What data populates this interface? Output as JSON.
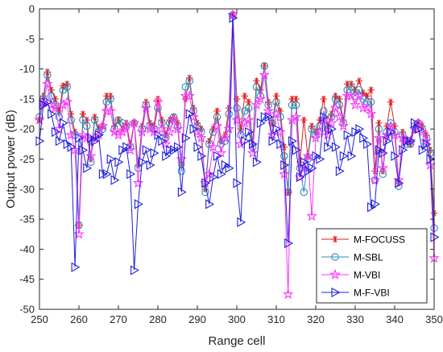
{
  "chart_data": {
    "type": "line",
    "title": "",
    "xlabel": "Range cell",
    "ylabel": "Output power (dB)",
    "xlim": [
      250,
      350
    ],
    "ylim": [
      -50,
      0
    ],
    "xticks": [
      250,
      260,
      270,
      280,
      290,
      300,
      310,
      320,
      330,
      340,
      350
    ],
    "yticks": [
      0,
      -5,
      -10,
      -15,
      -20,
      -25,
      -30,
      -35,
      -40,
      -45,
      -50
    ],
    "grid": false,
    "legend_position": "bottom-right",
    "x": [
      250,
      251,
      252,
      253,
      254,
      255,
      256,
      257,
      258,
      259,
      260,
      261,
      262,
      263,
      264,
      265,
      266,
      267,
      268,
      269,
      270,
      271,
      272,
      273,
      274,
      275,
      276,
      277,
      278,
      279,
      280,
      281,
      282,
      283,
      284,
      285,
      286,
      287,
      288,
      289,
      290,
      291,
      292,
      293,
      294,
      295,
      296,
      297,
      298,
      299,
      300,
      301,
      302,
      303,
      304,
      305,
      306,
      307,
      308,
      309,
      310,
      311,
      312,
      313,
      314,
      315,
      316,
      317,
      318,
      319,
      320,
      321,
      322,
      323,
      324,
      325,
      326,
      327,
      328,
      329,
      330,
      331,
      332,
      333,
      334,
      335,
      336,
      337,
      338,
      339,
      340,
      341,
      342,
      343,
      344,
      345,
      346,
      347,
      348,
      349,
      350
    ],
    "series": [
      {
        "name": "M-FOCUSS",
        "color": "#e41a1c",
        "marker": "asterisk",
        "values": [
          -18.5,
          -14.5,
          -10.5,
          -13.5,
          -15.0,
          -17.0,
          -12.8,
          -12.5,
          -17.5,
          -20.5,
          -36.0,
          -17.5,
          -18.5,
          -25.0,
          -18.0,
          -20.0,
          -19.5,
          -14.5,
          -14.5,
          -19.5,
          -18.5,
          -20.0,
          -19.0,
          -22.5,
          -19.0,
          -26.0,
          -19.5,
          -15.5,
          -19.0,
          -19.5,
          -15.0,
          -18.5,
          -21.0,
          -18.5,
          -18.0,
          -19.0,
          -26.0,
          -15.0,
          -11.5,
          -16.5,
          -19.0,
          -20.0,
          -30.0,
          -22.0,
          -20.0,
          -17.0,
          -22.0,
          -21.0,
          -16.5,
          -1.0,
          -15.0,
          -20.0,
          -14.5,
          -15.5,
          -22.5,
          -12.0,
          -13.5,
          -9.5,
          -15.5,
          -19.0,
          -14.5,
          -17.0,
          -23.0,
          -30.5,
          -15.0,
          -15.0,
          -25.5,
          -18.5,
          -24.5,
          -19.5,
          -20.5,
          -18.5,
          -15.0,
          -19.5,
          -17.5,
          -14.5,
          -15.0,
          -18.5,
          -12.5,
          -12.5,
          -13.5,
          -12.0,
          -14.0,
          -14.5,
          -13.5,
          -27.0,
          -19.0,
          -27.0,
          -19.5,
          -15.5,
          -19.5,
          -29.0,
          -20.5,
          -22.0,
          -22.5,
          -20.0,
          -19.0,
          -19.5,
          -21.0,
          -23.5,
          -34.0
        ]
      },
      {
        "name": "M-SBL",
        "color": "#2b8cbe",
        "marker": "circle",
        "values": [
          -18.0,
          -15.0,
          -11.0,
          -14.5,
          -16.0,
          -18.0,
          -13.5,
          -13.0,
          -18.5,
          -21.0,
          -36.0,
          -18.5,
          -19.5,
          -25.5,
          -18.5,
          -20.5,
          -20.0,
          -15.5,
          -15.0,
          -20.0,
          -18.5,
          -19.0,
          -19.5,
          -23.0,
          -19.0,
          -26.5,
          -20.0,
          -16.0,
          -19.5,
          -20.0,
          -16.5,
          -19.0,
          -21.5,
          -19.0,
          -18.0,
          -19.5,
          -27.0,
          -13.0,
          -12.0,
          -17.0,
          -19.5,
          -20.5,
          -30.5,
          -22.5,
          -20.5,
          -18.0,
          -22.5,
          -22.0,
          -17.5,
          -1.0,
          -16.5,
          -21.0,
          -17.0,
          -16.5,
          -23.0,
          -13.0,
          -14.5,
          -9.5,
          -16.0,
          -19.0,
          -15.5,
          -18.0,
          -24.5,
          -30.5,
          -16.0,
          -16.0,
          -26.5,
          -30.5,
          -25.0,
          -20.0,
          -21.0,
          -19.5,
          -17.0,
          -20.0,
          -18.0,
          -15.0,
          -16.0,
          -19.0,
          -13.5,
          -13.0,
          -14.5,
          -13.5,
          -15.0,
          -15.5,
          -15.5,
          -28.5,
          -20.0,
          -27.5,
          -20.5,
          -19.0,
          -20.5,
          -29.5,
          -21.0,
          -22.5,
          -22.5,
          -19.5,
          -19.0,
          -20.0,
          -21.5,
          -24.0,
          -36.5
        ]
      },
      {
        "name": "M-VBI",
        "color": "#ff33ff",
        "marker": "pentagram",
        "values": [
          -18.5,
          -15.5,
          -12.5,
          -16.0,
          -16.5,
          -20.0,
          -16.0,
          -15.5,
          -21.0,
          -23.5,
          -37.5,
          -21.0,
          -21.5,
          -24.5,
          -21.5,
          -21.0,
          -19.5,
          -17.0,
          -17.0,
          -20.5,
          -21.0,
          -20.5,
          -19.5,
          -23.5,
          -19.0,
          -29.0,
          -20.5,
          -16.5,
          -20.0,
          -20.5,
          -15.5,
          -20.0,
          -22.5,
          -20.5,
          -18.5,
          -20.0,
          -25.0,
          -14.5,
          -14.5,
          -18.0,
          -20.5,
          -21.5,
          -29.0,
          -27.5,
          -23.0,
          -19.5,
          -24.0,
          -21.5,
          -20.0,
          -1.0,
          -18.5,
          -22.5,
          -19.0,
          -18.5,
          -24.0,
          -16.0,
          -15.0,
          -11.0,
          -17.0,
          -21.0,
          -17.5,
          -20.5,
          -27.5,
          -47.5,
          -18.5,
          -18.0,
          -28.0,
          -26.5,
          -24.5,
          -34.5,
          -21.5,
          -20.5,
          -18.5,
          -21.0,
          -19.0,
          -16.5,
          -18.0,
          -19.5,
          -14.5,
          -14.5,
          -16.0,
          -14.5,
          -16.5,
          -16.5,
          -17.5,
          -28.5,
          -21.5,
          -26.5,
          -21.0,
          -19.5,
          -21.0,
          -28.5,
          -21.5,
          -22.0,
          -22.0,
          -20.0,
          -19.0,
          -20.5,
          -22.0,
          -26.0,
          -41.5
        ]
      },
      {
        "name": "M-F-VBI",
        "color": "#1f1fdd",
        "marker": "triangle-right",
        "values": [
          -22.0,
          -16.0,
          -15.5,
          -17.5,
          -20.5,
          -22.0,
          -19.0,
          -22.5,
          -23.0,
          -43.0,
          -21.5,
          -23.5,
          -26.5,
          -21.5,
          -22.0,
          -21.0,
          -27.5,
          -27.5,
          -25.0,
          -28.5,
          -25.5,
          -23.5,
          -23.0,
          -27.5,
          -43.5,
          -32.5,
          -25.5,
          -23.5,
          -26.0,
          -24.0,
          -21.0,
          -22.0,
          -24.5,
          -23.5,
          -23.5,
          -23.0,
          -30.5,
          -21.5,
          -17.5,
          -20.0,
          -23.0,
          -24.5,
          -29.0,
          -32.5,
          -28.0,
          -24.5,
          -27.5,
          -26.0,
          -26.5,
          -1.5,
          -29.0,
          -35.5,
          -22.0,
          -20.5,
          -22.5,
          -25.5,
          -19.0,
          -18.0,
          -18.0,
          -22.0,
          -20.0,
          -22.5,
          -26.0,
          -39.0,
          -22.0,
          -23.5,
          -28.0,
          -25.5,
          -27.0,
          -26.5,
          -24.5,
          -25.0,
          -18.0,
          -23.0,
          -20.0,
          -23.0,
          -27.0,
          -24.5,
          -21.0,
          -24.5,
          -20.5,
          -20.0,
          -21.5,
          -22.5,
          -33.0,
          -32.5,
          -23.5,
          -24.0,
          -22.0,
          -20.5,
          -24.5,
          -29.0,
          -23.5,
          -22.0,
          -22.0,
          -19.0,
          -20.0,
          -23.5,
          -22.5,
          -25.0,
          -38.0
        ]
      }
    ]
  }
}
